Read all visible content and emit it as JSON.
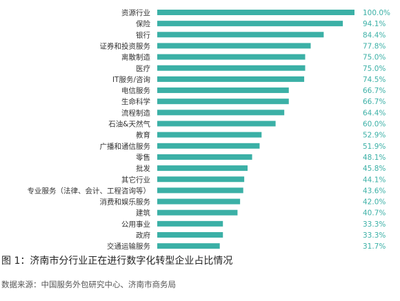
{
  "colors": {
    "bar": "#3bb0a6",
    "value_label": "#3bb0a6"
  },
  "caption": "图 1：济南市分行业正在进行数字化转型企业占比情况",
  "source": "数据来源：中国服务外包研究中心、济南市商务局",
  "chart_data": {
    "type": "bar",
    "orientation": "horizontal",
    "categories": [
      "资源行业",
      "保险",
      "银行",
      "证券和投资服务",
      "离散制造",
      "医疗",
      "IT服务/咨询",
      "电信服务",
      "生命科学",
      "流程制造",
      "石油&天然气",
      "教育",
      "广播和通信服务",
      "零售",
      "批发",
      "其它行业",
      "专业服务（法律、会计、工程咨询等）",
      "消费和娱乐服务",
      "建筑",
      "公用事业",
      "政府",
      "交通运输服务"
    ],
    "values": [
      100.0,
      94.1,
      84.4,
      77.8,
      75.0,
      75.0,
      74.5,
      66.7,
      66.7,
      64.4,
      60.0,
      52.9,
      51.9,
      48.1,
      45.8,
      44.1,
      43.6,
      42.0,
      40.7,
      33.3,
      33.3,
      31.7
    ],
    "value_labels": [
      "100.0%",
      "94.1%",
      "84.4%",
      "77.8%",
      "75.0%",
      "75.0%",
      "74.5%",
      "66.7%",
      "66.7%",
      "64.4%",
      "60.0%",
      "52.9%",
      "51.9%",
      "48.1%",
      "45.8%",
      "44.1%",
      "43.6%",
      "42.0%",
      "40.7%",
      "33.3%",
      "33.3%",
      "31.7%"
    ],
    "xlim": [
      0,
      100
    ],
    "grid": false,
    "legend": "none"
  }
}
